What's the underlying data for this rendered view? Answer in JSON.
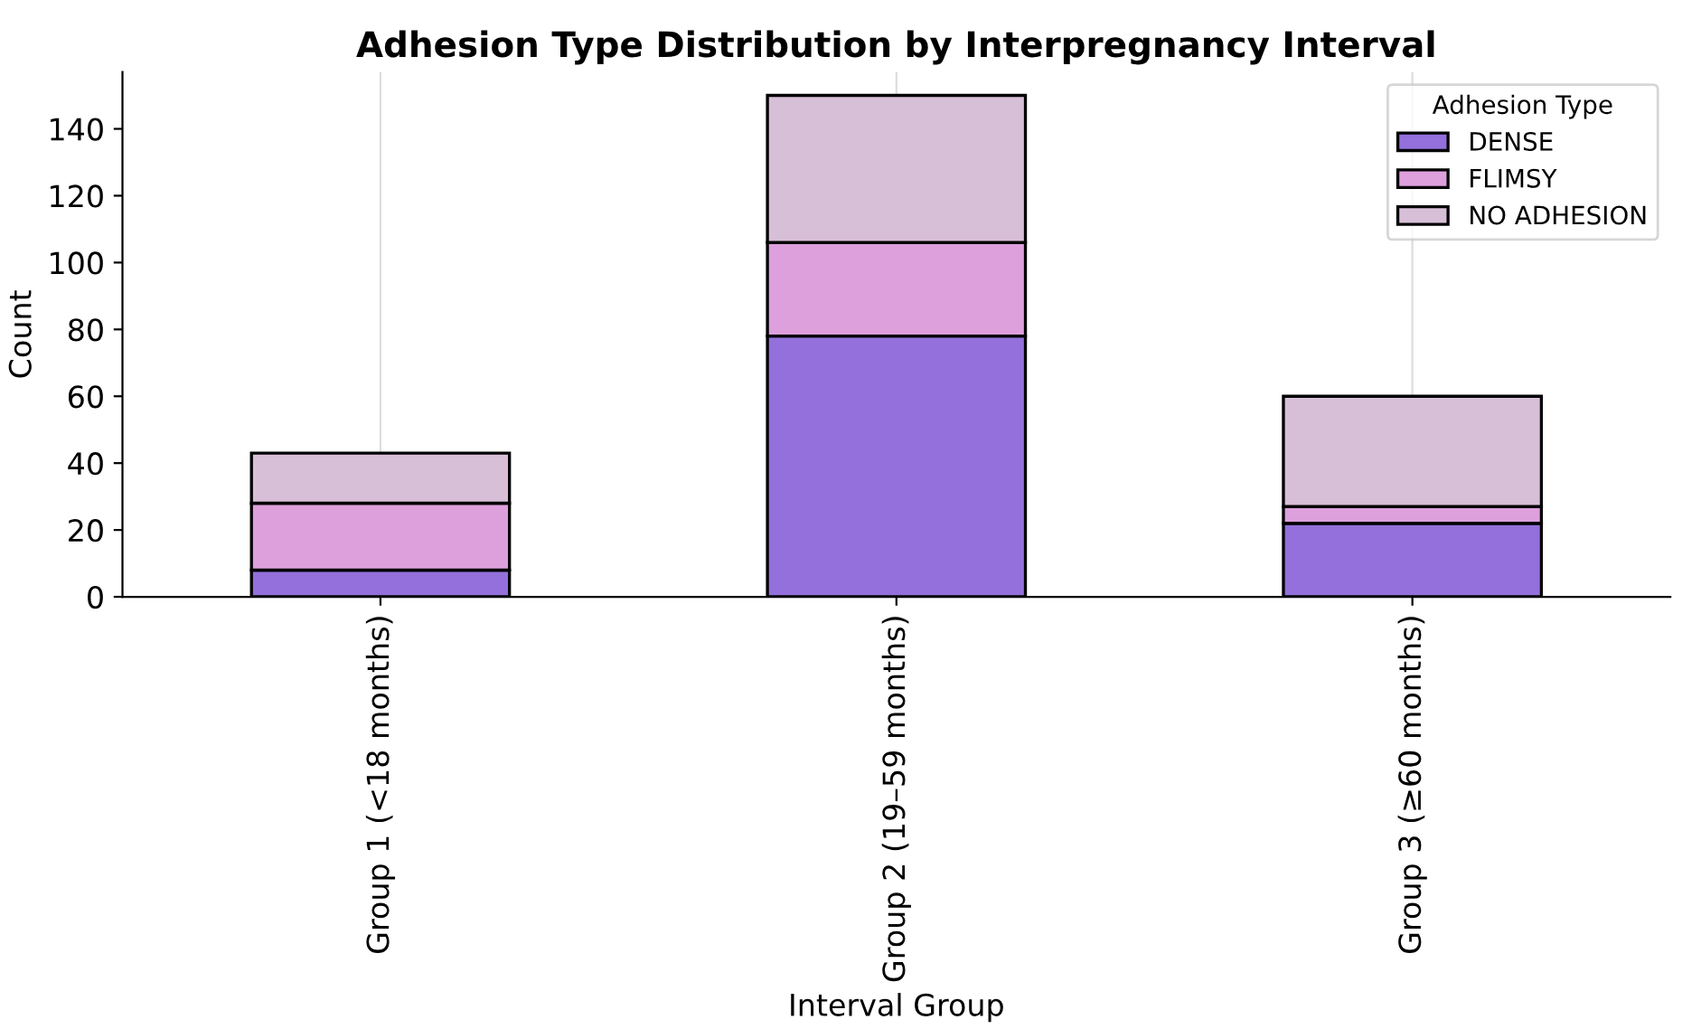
{
  "chart_data": {
    "type": "bar",
    "title": "Adhesion Type Distribution by Interpregnancy Interval",
    "xlabel": "Interval Group",
    "ylabel": "Count",
    "categories": [
      "Group 1 (<18 months)",
      "Group 2 (19–59 months)",
      "Group 3 (≥60 months)"
    ],
    "stacked": true,
    "legend_title": "Adhesion Type",
    "legend": "top right",
    "grid": "x",
    "ylim": [
      0,
      157
    ],
    "yticks": [
      0,
      20,
      40,
      60,
      80,
      100,
      120,
      140
    ],
    "series": [
      {
        "name": "DENSE",
        "color": "#9370db",
        "values": [
          8,
          78,
          22
        ]
      },
      {
        "name": "FLIMSY",
        "color": "#dda0dd",
        "values": [
          20,
          28,
          5
        ]
      },
      {
        "name": "NO ADHESION",
        "color": "#d8bfd8",
        "values": [
          15,
          44,
          33
        ]
      }
    ]
  }
}
